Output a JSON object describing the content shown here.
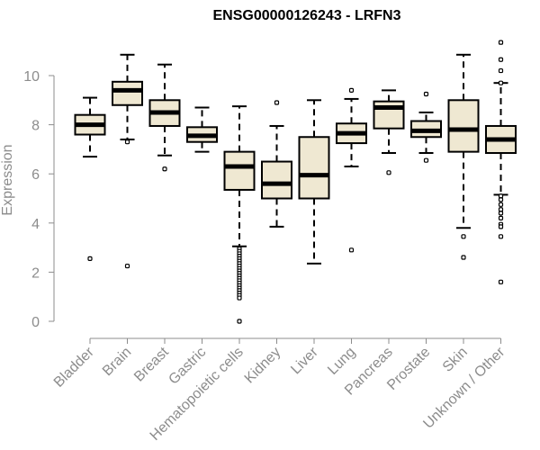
{
  "chart_data": {
    "type": "box",
    "title": "ENSG00000126243 - LRFN3",
    "xlabel": "",
    "ylabel": "Expression",
    "ylim": [
      0,
      11.5
    ],
    "yticks": [
      0,
      2,
      4,
      6,
      8,
      10
    ],
    "grid": false,
    "legend": "none",
    "box_fill": "#efe8d2",
    "categories": [
      "Bladder",
      "Brain",
      "Breast",
      "Gastric",
      "Hematopoietic cells",
      "Kidney",
      "Liver",
      "Lung",
      "Pancreas",
      "Prostate",
      "Skin",
      "Unknown / Other"
    ],
    "boxes": [
      {
        "category": "Bladder",
        "whisker_low": 6.7,
        "q1": 7.6,
        "median": 8.0,
        "q3": 8.4,
        "whisker_high": 9.1,
        "outliers": [
          2.55
        ]
      },
      {
        "category": "Brain",
        "whisker_low": 7.4,
        "q1": 8.8,
        "median": 9.4,
        "q3": 9.75,
        "whisker_high": 10.85,
        "outliers": [
          7.3,
          2.25
        ]
      },
      {
        "category": "Breast",
        "whisker_low": 6.75,
        "q1": 7.95,
        "median": 8.5,
        "q3": 9.0,
        "whisker_high": 10.45,
        "outliers": [
          6.2
        ]
      },
      {
        "category": "Gastric",
        "whisker_low": 6.9,
        "q1": 7.3,
        "median": 7.55,
        "q3": 7.9,
        "whisker_high": 8.7,
        "outliers": []
      },
      {
        "category": "Hematopoietic cells",
        "whisker_low": 3.05,
        "q1": 5.35,
        "median": 6.3,
        "q3": 6.9,
        "whisker_high": 8.75,
        "outliers": [
          2.95,
          2.85,
          2.75,
          2.65,
          2.55,
          2.45,
          2.35,
          2.25,
          2.15,
          2.05,
          1.95,
          1.85,
          1.75,
          1.65,
          1.55,
          1.45,
          1.35,
          1.25,
          1.15,
          1.05,
          0.95,
          0.0
        ]
      },
      {
        "category": "Kidney",
        "whisker_low": 3.85,
        "q1": 5.0,
        "median": 5.6,
        "q3": 6.5,
        "whisker_high": 7.95,
        "outliers": [
          8.9
        ]
      },
      {
        "category": "Liver",
        "whisker_low": 2.35,
        "q1": 5.0,
        "median": 5.95,
        "q3": 7.5,
        "whisker_high": 9.0,
        "outliers": []
      },
      {
        "category": "Lung",
        "whisker_low": 6.3,
        "q1": 7.25,
        "median": 7.65,
        "q3": 8.05,
        "whisker_high": 9.05,
        "outliers": [
          9.4,
          2.9
        ]
      },
      {
        "category": "Pancreas",
        "whisker_low": 6.85,
        "q1": 7.85,
        "median": 8.7,
        "q3": 8.95,
        "whisker_high": 9.4,
        "outliers": [
          6.05
        ]
      },
      {
        "category": "Prostate",
        "whisker_low": 6.85,
        "q1": 7.5,
        "median": 7.75,
        "q3": 8.15,
        "whisker_high": 8.5,
        "outliers": [
          9.25,
          6.55
        ]
      },
      {
        "category": "Skin",
        "whisker_low": 3.8,
        "q1": 6.9,
        "median": 7.8,
        "q3": 9.0,
        "whisker_high": 10.85,
        "outliers": [
          3.45,
          2.6
        ]
      },
      {
        "category": "Unknown / Other",
        "whisker_low": 5.15,
        "q1": 6.85,
        "median": 7.4,
        "q3": 7.95,
        "whisker_high": 9.7,
        "outliers": [
          11.35,
          10.65,
          10.2,
          9.7,
          5.1,
          4.95,
          4.75,
          4.55,
          4.4,
          4.2,
          3.95,
          3.85,
          3.45,
          1.6
        ]
      }
    ]
  }
}
